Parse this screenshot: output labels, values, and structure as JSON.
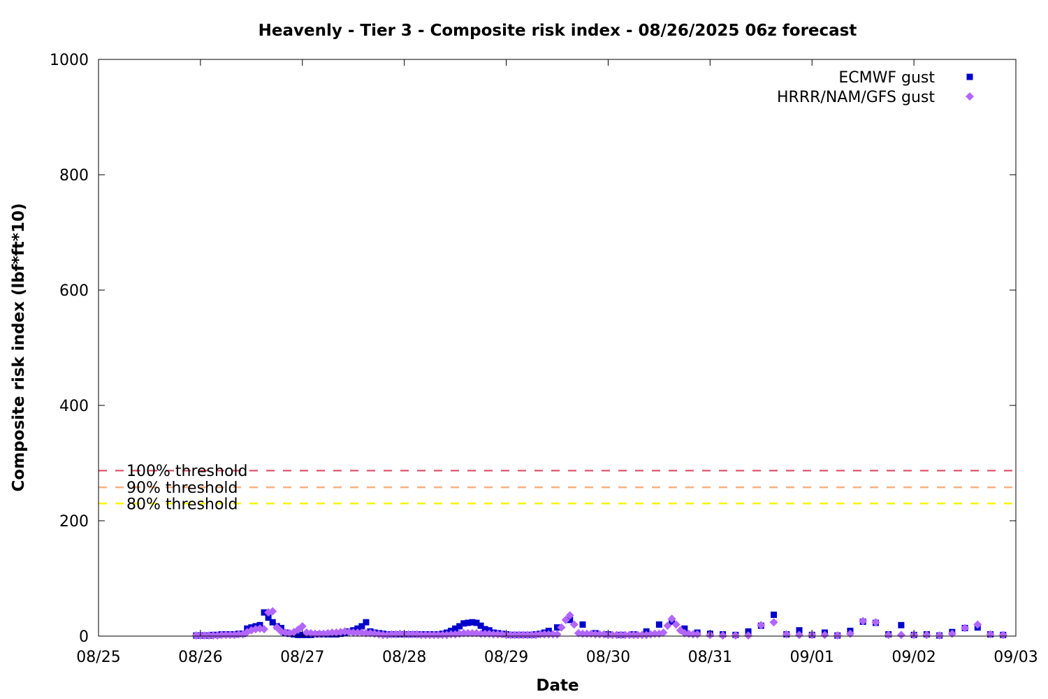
{
  "chart_data": {
    "type": "scatter",
    "title": "Heavenly - Tier 3 - Composite risk index - 08/26/2025 06z forecast",
    "xlabel": "Date",
    "ylabel": "Composite risk index (lbf*ft*10)",
    "x_ticks": [
      "08/25",
      "08/26",
      "08/27",
      "08/28",
      "08/29",
      "08/30",
      "08/31",
      "09/01",
      "09/02",
      "09/03"
    ],
    "y_ticks": [
      0,
      200,
      400,
      600,
      800,
      1000
    ],
    "xlim": [
      "08/25",
      "09/03"
    ],
    "ylim": [
      0,
      1000
    ],
    "grid": false,
    "legend_position": "top-right",
    "thresholds": [
      {
        "label": "100% threshold",
        "value": 287,
        "color": "#e0657a"
      },
      {
        "label": "90% threshold",
        "value": 258,
        "color": "#f4b183"
      },
      {
        "label": "80% threshold",
        "value": 230,
        "color": "#f5f500"
      }
    ],
    "series": [
      {
        "name": "ECMWF gust",
        "marker": "square",
        "color": "#0000cc",
        "points": [
          [
            "08/25 23:00",
            1
          ],
          [
            "08/26 00:00",
            1
          ],
          [
            "08/26 01:00",
            1
          ],
          [
            "08/26 02:00",
            1
          ],
          [
            "08/26 03:00",
            2
          ],
          [
            "08/26 04:00",
            2
          ],
          [
            "08/26 05:00",
            3
          ],
          [
            "08/26 06:00",
            3
          ],
          [
            "08/26 07:00",
            3
          ],
          [
            "08/26 08:00",
            3
          ],
          [
            "08/26 09:00",
            4
          ],
          [
            "08/26 10:00",
            4
          ],
          [
            "08/26 11:00",
            13
          ],
          [
            "08/26 12:00",
            15
          ],
          [
            "08/26 13:00",
            17
          ],
          [
            "08/26 14:00",
            19
          ],
          [
            "08/26 15:00",
            41
          ],
          [
            "08/26 16:00",
            32
          ],
          [
            "08/26 17:00",
            24
          ],
          [
            "08/26 18:00",
            17
          ],
          [
            "08/26 19:00",
            14
          ],
          [
            "08/26 20:00",
            6
          ],
          [
            "08/26 21:00",
            4
          ],
          [
            "08/26 22:00",
            3
          ],
          [
            "08/26 23:00",
            2
          ],
          [
            "08/27 00:00",
            2
          ],
          [
            "08/27 01:00",
            2
          ],
          [
            "08/27 02:00",
            2
          ],
          [
            "08/27 03:00",
            3
          ],
          [
            "08/27 04:00",
            3
          ],
          [
            "08/27 05:00",
            3
          ],
          [
            "08/27 06:00",
            3
          ],
          [
            "08/27 07:00",
            3
          ],
          [
            "08/27 08:00",
            3
          ],
          [
            "08/27 09:00",
            4
          ],
          [
            "08/27 10:00",
            6
          ],
          [
            "08/27 11:00",
            8
          ],
          [
            "08/27 12:00",
            10
          ],
          [
            "08/27 13:00",
            13
          ],
          [
            "08/27 14:00",
            17
          ],
          [
            "08/27 15:00",
            24
          ],
          [
            "08/27 16:00",
            8
          ],
          [
            "08/27 17:00",
            6
          ],
          [
            "08/27 18:00",
            5
          ],
          [
            "08/27 19:00",
            4
          ],
          [
            "08/27 20:00",
            3
          ],
          [
            "08/27 21:00",
            3
          ],
          [
            "08/27 22:00",
            3
          ],
          [
            "08/27 23:00",
            3
          ],
          [
            "08/28 00:00",
            3
          ],
          [
            "08/28 01:00",
            3
          ],
          [
            "08/28 02:00",
            3
          ],
          [
            "08/28 03:00",
            3
          ],
          [
            "08/28 04:00",
            3
          ],
          [
            "08/28 05:00",
            3
          ],
          [
            "08/28 06:00",
            3
          ],
          [
            "08/28 07:00",
            3
          ],
          [
            "08/28 08:00",
            3
          ],
          [
            "08/28 09:00",
            4
          ],
          [
            "08/28 10:00",
            6
          ],
          [
            "08/28 11:00",
            9
          ],
          [
            "08/28 12:00",
            13
          ],
          [
            "08/28 13:00",
            17
          ],
          [
            "08/28 14:00",
            22
          ],
          [
            "08/28 15:00",
            23
          ],
          [
            "08/28 16:00",
            24
          ],
          [
            "08/28 17:00",
            23
          ],
          [
            "08/28 18:00",
            18
          ],
          [
            "08/28 19:00",
            12
          ],
          [
            "08/28 20:00",
            10
          ],
          [
            "08/28 21:00",
            6
          ],
          [
            "08/28 22:00",
            5
          ],
          [
            "08/28 23:00",
            4
          ],
          [
            "08/29 00:00",
            3
          ],
          [
            "08/29 01:00",
            2
          ],
          [
            "08/29 02:00",
            2
          ],
          [
            "08/29 03:00",
            2
          ],
          [
            "08/29 04:00",
            2
          ],
          [
            "08/29 05:00",
            2
          ],
          [
            "08/29 06:00",
            2
          ],
          [
            "08/29 07:00",
            3
          ],
          [
            "08/29 08:00",
            4
          ],
          [
            "08/29 09:00",
            6
          ],
          [
            "08/29 10:00",
            9
          ],
          [
            "08/29 12:00",
            15
          ],
          [
            "08/29 15:00",
            28
          ],
          [
            "08/29 18:00",
            20
          ],
          [
            "08/29 21:00",
            5
          ],
          [
            "08/30 00:00",
            3
          ],
          [
            "08/30 03:00",
            2
          ],
          [
            "08/30 06:00",
            3
          ],
          [
            "08/30 09:00",
            8
          ],
          [
            "08/30 12:00",
            20
          ],
          [
            "08/30 15:00",
            25
          ],
          [
            "08/30 18:00",
            13
          ],
          [
            "08/30 21:00",
            6
          ],
          [
            "08/31 00:00",
            4
          ],
          [
            "08/31 03:00",
            3
          ],
          [
            "08/31 06:00",
            2
          ],
          [
            "08/31 09:00",
            8
          ],
          [
            "08/31 12:00",
            18
          ],
          [
            "08/31 15:00",
            37
          ],
          [
            "08/31 18:00",
            3
          ],
          [
            "08/31 21:00",
            10
          ],
          [
            "09/01 00:00",
            2
          ],
          [
            "09/01 03:00",
            6
          ],
          [
            "09/01 06:00",
            1
          ],
          [
            "09/01 09:00",
            9
          ],
          [
            "09/01 12:00",
            25
          ],
          [
            "09/01 15:00",
            23
          ],
          [
            "09/01 18:00",
            3
          ],
          [
            "09/01 21:00",
            19
          ],
          [
            "09/02 00:00",
            2
          ],
          [
            "09/02 03:00",
            3
          ],
          [
            "09/02 06:00",
            1
          ],
          [
            "09/02 09:00",
            7
          ],
          [
            "09/02 12:00",
            14
          ],
          [
            "09/02 15:00",
            15
          ],
          [
            "09/02 18:00",
            3
          ],
          [
            "09/02 21:00",
            2
          ]
        ]
      },
      {
        "name": "HRRR/NAM/GFS gust",
        "marker": "diamond",
        "color": "#b266ff",
        "points": [
          [
            "08/25 23:00",
            1
          ],
          [
            "08/26 00:00",
            1
          ],
          [
            "08/26 01:00",
            1
          ],
          [
            "08/26 02:00",
            1
          ],
          [
            "08/26 03:00",
            1
          ],
          [
            "08/26 04:00",
            1
          ],
          [
            "08/26 05:00",
            2
          ],
          [
            "08/26 06:00",
            2
          ],
          [
            "08/26 07:00",
            2
          ],
          [
            "08/26 08:00",
            2
          ],
          [
            "08/26 09:00",
            3
          ],
          [
            "08/26 10:00",
            3
          ],
          [
            "08/26 11:00",
            7
          ],
          [
            "08/26 12:00",
            10
          ],
          [
            "08/26 13:00",
            12
          ],
          [
            "08/26 14:00",
            13
          ],
          [
            "08/26 15:00",
            12
          ],
          [
            "08/26 16:00",
            41
          ],
          [
            "08/26 17:00",
            43
          ],
          [
            "08/26 18:00",
            15
          ],
          [
            "08/26 19:00",
            8
          ],
          [
            "08/26 20:00",
            6
          ],
          [
            "08/26 21:00",
            5
          ],
          [
            "08/26 22:00",
            7
          ],
          [
            "08/26 23:00",
            11
          ],
          [
            "08/27 00:00",
            17
          ],
          [
            "08/27 01:00",
            6
          ],
          [
            "08/27 02:00",
            5
          ],
          [
            "08/27 03:00",
            4
          ],
          [
            "08/27 04:00",
            4
          ],
          [
            "08/27 05:00",
            4
          ],
          [
            "08/27 06:00",
            5
          ],
          [
            "08/27 07:00",
            6
          ],
          [
            "08/27 08:00",
            6
          ],
          [
            "08/27 09:00",
            7
          ],
          [
            "08/27 10:00",
            8
          ],
          [
            "08/27 11:00",
            7
          ],
          [
            "08/27 12:00",
            6
          ],
          [
            "08/27 13:00",
            6
          ],
          [
            "08/27 14:00",
            6
          ],
          [
            "08/27 15:00",
            5
          ],
          [
            "08/27 16:00",
            5
          ],
          [
            "08/27 17:00",
            4
          ],
          [
            "08/27 18:00",
            3
          ],
          [
            "08/27 19:00",
            2
          ],
          [
            "08/27 20:00",
            2
          ],
          [
            "08/27 21:00",
            3
          ],
          [
            "08/27 22:00",
            3
          ],
          [
            "08/27 23:00",
            4
          ],
          [
            "08/28 00:00",
            3
          ],
          [
            "08/28 01:00",
            3
          ],
          [
            "08/28 02:00",
            3
          ],
          [
            "08/28 03:00",
            3
          ],
          [
            "08/28 04:00",
            2
          ],
          [
            "08/28 05:00",
            2
          ],
          [
            "08/28 06:00",
            2
          ],
          [
            "08/28 07:00",
            2
          ],
          [
            "08/28 08:00",
            2
          ],
          [
            "08/28 09:00",
            2
          ],
          [
            "08/28 10:00",
            2
          ],
          [
            "08/28 11:00",
            3
          ],
          [
            "08/28 12:00",
            3
          ],
          [
            "08/28 13:00",
            4
          ],
          [
            "08/28 14:00",
            5
          ],
          [
            "08/28 15:00",
            5
          ],
          [
            "08/28 16:00",
            5
          ],
          [
            "08/28 17:00",
            5
          ],
          [
            "08/28 18:00",
            4
          ],
          [
            "08/28 19:00",
            4
          ],
          [
            "08/28 20:00",
            4
          ],
          [
            "08/28 21:00",
            3
          ],
          [
            "08/28 22:00",
            3
          ],
          [
            "08/28 23:00",
            3
          ],
          [
            "08/29 00:00",
            2
          ],
          [
            "08/29 01:00",
            2
          ],
          [
            "08/29 02:00",
            2
          ],
          [
            "08/29 03:00",
            2
          ],
          [
            "08/29 04:00",
            2
          ],
          [
            "08/29 05:00",
            2
          ],
          [
            "08/29 06:00",
            2
          ],
          [
            "08/29 07:00",
            2
          ],
          [
            "08/29 08:00",
            3
          ],
          [
            "08/29 09:00",
            3
          ],
          [
            "08/29 10:00",
            3
          ],
          [
            "08/29 11:00",
            3
          ],
          [
            "08/29 12:00",
            3
          ],
          [
            "08/29 13:00",
            15
          ],
          [
            "08/29 14:00",
            28
          ],
          [
            "08/29 15:00",
            36
          ],
          [
            "08/29 16:00",
            20
          ],
          [
            "08/29 17:00",
            5
          ],
          [
            "08/29 18:00",
            4
          ],
          [
            "08/29 19:00",
            4
          ],
          [
            "08/29 20:00",
            4
          ],
          [
            "08/29 21:00",
            3
          ],
          [
            "08/29 22:00",
            3
          ],
          [
            "08/29 23:00",
            3
          ],
          [
            "08/30 00:00",
            2
          ],
          [
            "08/30 01:00",
            2
          ],
          [
            "08/30 02:00",
            2
          ],
          [
            "08/30 03:00",
            2
          ],
          [
            "08/30 04:00",
            2
          ],
          [
            "08/30 05:00",
            2
          ],
          [
            "08/30 06:00",
            2
          ],
          [
            "08/30 07:00",
            2
          ],
          [
            "08/30 08:00",
            2
          ],
          [
            "08/30 09:00",
            2
          ],
          [
            "08/30 10:00",
            3
          ],
          [
            "08/30 11:00",
            4
          ],
          [
            "08/30 12:00",
            4
          ],
          [
            "08/30 13:00",
            6
          ],
          [
            "08/30 14:00",
            18
          ],
          [
            "08/30 15:00",
            30
          ],
          [
            "08/30 16:00",
            20
          ],
          [
            "08/30 17:00",
            10
          ],
          [
            "08/30 18:00",
            5
          ],
          [
            "08/30 19:00",
            4
          ],
          [
            "08/30 20:00",
            3
          ],
          [
            "08/30 21:00",
            3
          ],
          [
            "08/31 00:00",
            2
          ],
          [
            "08/31 03:00",
            1
          ],
          [
            "08/31 06:00",
            1
          ],
          [
            "08/31 09:00",
            1
          ],
          [
            "08/31 12:00",
            19
          ],
          [
            "08/31 15:00",
            24
          ],
          [
            "08/31 18:00",
            3
          ],
          [
            "08/31 21:00",
            2
          ],
          [
            "09/01 00:00",
            2
          ],
          [
            "09/01 03:00",
            2
          ],
          [
            "09/01 06:00",
            1
          ],
          [
            "09/01 09:00",
            4
          ],
          [
            "09/01 12:00",
            26
          ],
          [
            "09/01 15:00",
            24
          ],
          [
            "09/01 18:00",
            2
          ],
          [
            "09/01 21:00",
            2
          ],
          [
            "09/02 00:00",
            2
          ],
          [
            "09/02 03:00",
            2
          ],
          [
            "09/02 06:00",
            1
          ],
          [
            "09/02 09:00",
            4
          ],
          [
            "09/02 12:00",
            14
          ],
          [
            "09/02 15:00",
            20
          ],
          [
            "09/02 18:00",
            3
          ],
          [
            "09/02 21:00",
            2
          ]
        ]
      }
    ]
  }
}
